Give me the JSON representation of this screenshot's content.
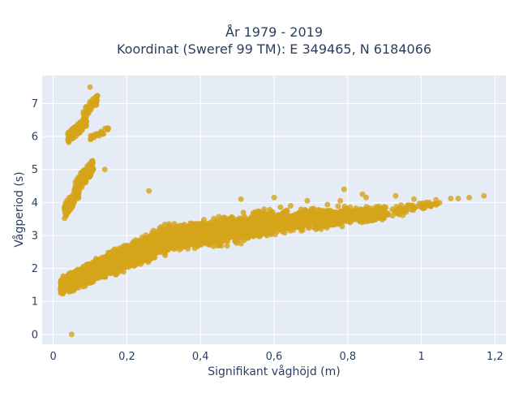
{
  "chart_data": {
    "type": "scatter",
    "title_line1": "År 1979 - 2019",
    "title_line2": "Koordinat (Sweref 99 TM): E 349465, N 6184066",
    "xlabel": "Signifikant våghöjd (m)",
    "ylabel": "Vågperiod (s)",
    "xlim": [
      -0.03,
      1.23
    ],
    "ylim": [
      -0.3,
      7.85
    ],
    "x_ticks": [
      0,
      0.2,
      0.4,
      0.6,
      0.8,
      1,
      1.2
    ],
    "x_tick_labels": [
      "0",
      "0,2",
      "0,4",
      "0,6",
      "0,8",
      "1",
      "1,2"
    ],
    "y_ticks": [
      0,
      1,
      2,
      3,
      4,
      5,
      6,
      7
    ],
    "y_tick_labels": [
      "0",
      "1",
      "2",
      "3",
      "4",
      "5",
      "6",
      "7"
    ],
    "grid": true,
    "colors": {
      "marker": "#d4a419",
      "plot_bg": "#e5ecf6",
      "grid": "#ffffff",
      "text": "#2a3f5f"
    },
    "clusters": [
      {
        "x_range": [
          0.02,
          0.3
        ],
        "y_lower": [
          1.1,
          2.3
        ],
        "y_upper": [
          1.8,
          3.4
        ],
        "count": 2200
      },
      {
        "x_range": [
          0.3,
          0.6
        ],
        "y_lower": [
          2.3,
          2.9
        ],
        "y_upper": [
          3.4,
          3.9
        ],
        "count": 1400
      },
      {
        "x_range": [
          0.6,
          0.9
        ],
        "y_lower": [
          2.9,
          3.4
        ],
        "y_upper": [
          3.9,
          4.0
        ],
        "count": 700
      },
      {
        "x_range": [
          0.9,
          1.05
        ],
        "y_lower": [
          3.4,
          3.9
        ],
        "y_upper": [
          4.0,
          4.1
        ],
        "count": 60
      }
    ],
    "swell_band": [
      {
        "x_range": [
          0.03,
          0.07
        ],
        "y_range": [
          3.5,
          4.6
        ],
        "count": 120
      },
      {
        "x_range": [
          0.06,
          0.11
        ],
        "y_range": [
          4.2,
          5.4
        ],
        "count": 100
      },
      {
        "x_range": [
          0.04,
          0.09
        ],
        "y_range": [
          5.8,
          6.6
        ],
        "count": 150
      },
      {
        "x_range": [
          0.08,
          0.12
        ],
        "y_range": [
          6.5,
          7.3
        ],
        "count": 40
      },
      {
        "x_range": [
          0.1,
          0.15
        ],
        "y_range": [
          5.9,
          6.3
        ],
        "count": 20
      }
    ],
    "points": [
      {
        "x": 0.05,
        "y": 0.0
      },
      {
        "x": 0.1,
        "y": 7.5
      },
      {
        "x": 1.17,
        "y": 4.2
      },
      {
        "x": 1.13,
        "y": 4.15
      },
      {
        "x": 1.1,
        "y": 4.12
      },
      {
        "x": 1.08,
        "y": 4.12
      },
      {
        "x": 1.04,
        "y": 4.08
      },
      {
        "x": 0.98,
        "y": 4.1
      },
      {
        "x": 0.93,
        "y": 4.2
      },
      {
        "x": 0.85,
        "y": 4.15
      },
      {
        "x": 0.78,
        "y": 4.05
      },
      {
        "x": 0.79,
        "y": 4.4
      },
      {
        "x": 0.69,
        "y": 4.05
      },
      {
        "x": 0.6,
        "y": 4.15
      },
      {
        "x": 0.51,
        "y": 4.1
      },
      {
        "x": 0.26,
        "y": 4.35
      },
      {
        "x": 0.84,
        "y": 4.25
      },
      {
        "x": 0.13,
        "y": 6.15
      },
      {
        "x": 0.14,
        "y": 5.0
      }
    ]
  }
}
